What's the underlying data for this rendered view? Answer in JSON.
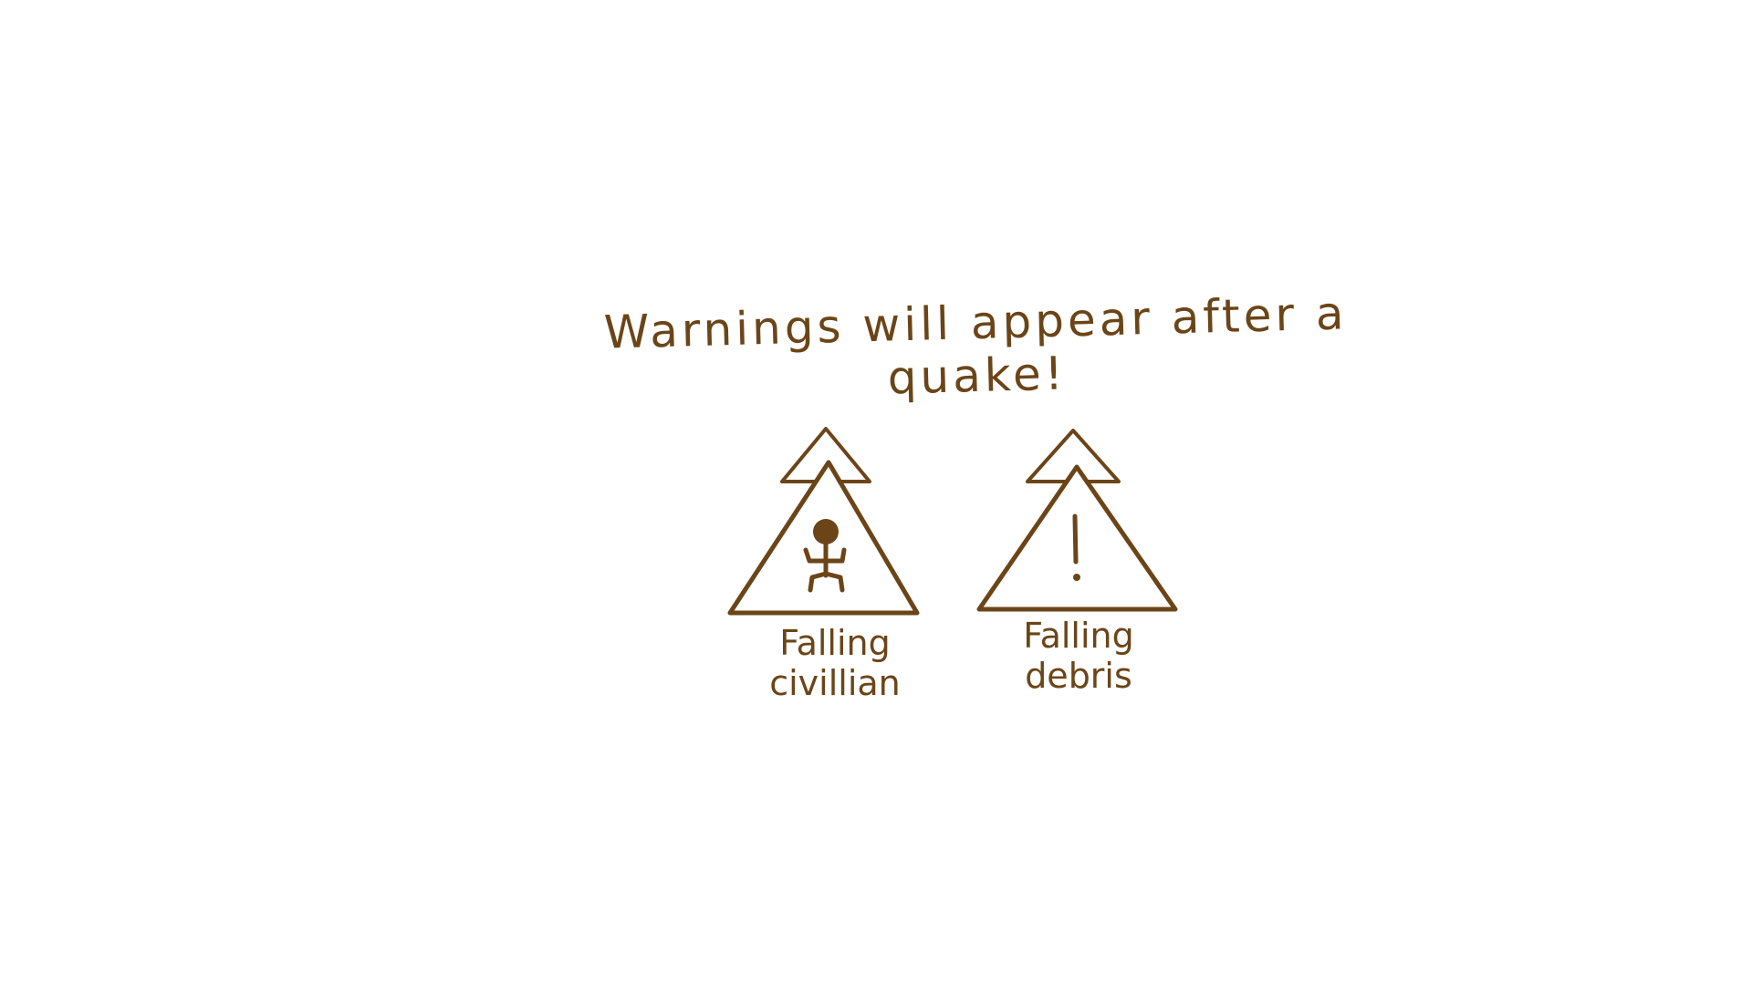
{
  "headline": "Warnings will appear after a quake!",
  "colors": {
    "ink": "#6b4518",
    "background": "#ffffff"
  },
  "warnings": [
    {
      "icon": "falling-civilian-icon",
      "label_line1": "Falling",
      "label_line2": "civillian"
    },
    {
      "icon": "falling-debris-icon",
      "label_line1": "Falling",
      "label_line2": "debris"
    }
  ]
}
